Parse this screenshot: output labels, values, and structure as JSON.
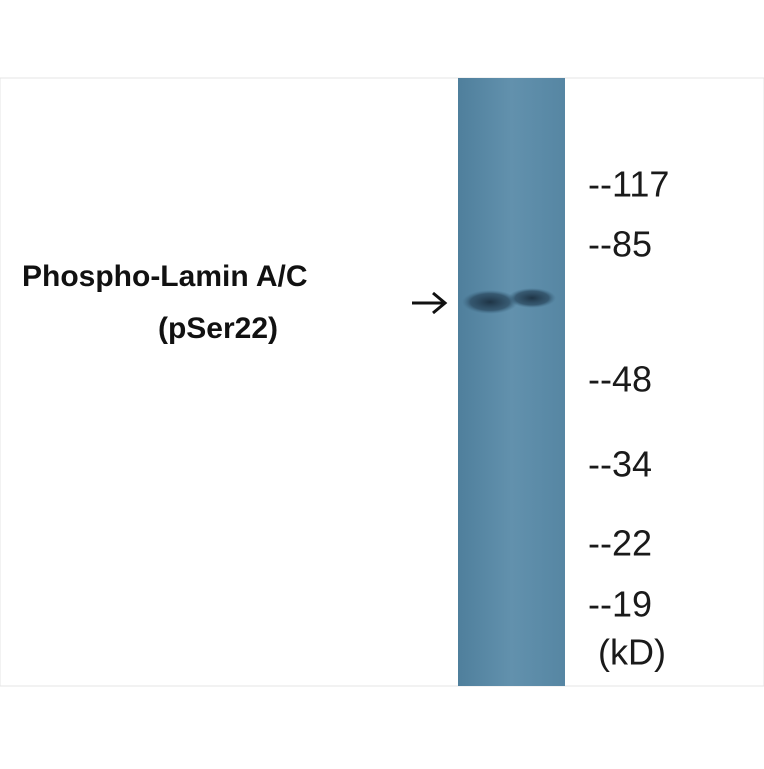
{
  "label": {
    "lines": [
      "Phospho-Lamin A/C",
      "(pSer22)"
    ]
  },
  "markers": [
    "--117",
    "--85",
    "--48",
    "--34",
    "--22",
    "--19"
  ],
  "unit": "(kD)"
}
